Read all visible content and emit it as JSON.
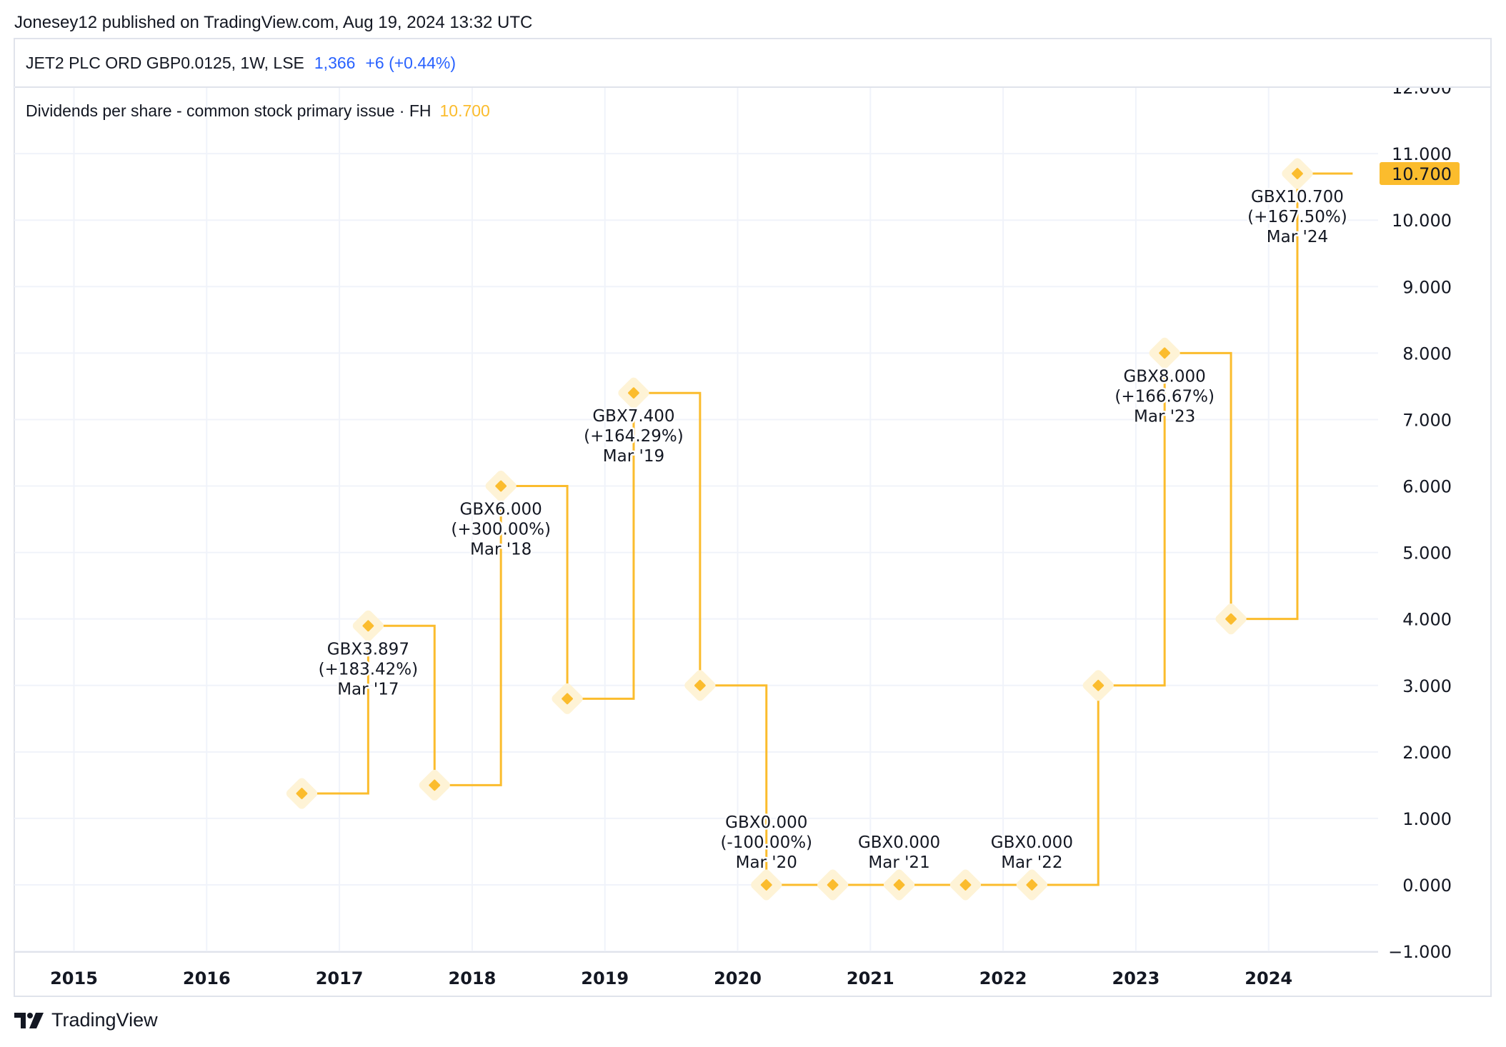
{
  "published": "Jonesey12 published on TradingView.com, Aug 19, 2024 13:32 UTC",
  "header": {
    "symbol": "JET2 PLC ORD GBP0.0125, 1W, LSE",
    "price": "1,366",
    "change": "+6 (+0.44%)"
  },
  "indicator": {
    "name": "Dividends per share - common stock primary issue · FH",
    "value": "10.700"
  },
  "footer": {
    "brand": "TradingView"
  },
  "colors": {
    "series": "#fbbc2d",
    "halo": "#fef3d6",
    "accent_blue": "#2962ff",
    "grid": "#f0f3fa"
  },
  "chart_data": {
    "type": "line",
    "step": true,
    "x": [
      "2016-09",
      "2017-03",
      "2017-09",
      "2018-03",
      "2018-09",
      "2019-03",
      "2019-09",
      "2020-03",
      "2020-09",
      "2021-03",
      "2021-09",
      "2022-03",
      "2022-09",
      "2023-03",
      "2023-09",
      "2024-03"
    ],
    "values": [
      1.375,
      3.897,
      1.5,
      6.0,
      2.8,
      7.4,
      3.0,
      0.0,
      0.0,
      0.0,
      0.0,
      0.0,
      3.0,
      8.0,
      4.0,
      10.7
    ],
    "line_end": "2024-08",
    "annotations": [
      {
        "x": "2017-03",
        "lines": [
          "GBX3.897",
          "(+183.42%)",
          "Mar '17"
        ]
      },
      {
        "x": "2018-03",
        "lines": [
          "GBX6.000",
          "(+300.00%)",
          "Mar '18"
        ]
      },
      {
        "x": "2019-03",
        "lines": [
          "GBX7.400",
          "(+164.29%)",
          "Mar '19"
        ]
      },
      {
        "x": "2020-03",
        "lines": [
          "GBX0.000",
          "(-100.00%)",
          "Mar '20"
        ]
      },
      {
        "x": "2021-03",
        "lines": [
          "GBX0.000",
          "Mar '21"
        ]
      },
      {
        "x": "2022-03",
        "lines": [
          "GBX0.000",
          "Mar '22"
        ]
      },
      {
        "x": "2023-03",
        "lines": [
          "GBX8.000",
          "(+166.67%)",
          "Mar '23"
        ]
      },
      {
        "x": "2024-03",
        "lines": [
          "GBX10.700",
          "(+167.50%)",
          "Mar '24"
        ]
      }
    ],
    "last_value_label": "10.700",
    "x_ticks": [
      "2015",
      "2016",
      "2017",
      "2018",
      "2019",
      "2020",
      "2021",
      "2022",
      "2023",
      "2024"
    ],
    "y_ticks": [
      "−1.000",
      "0.000",
      "1.000",
      "2.000",
      "3.000",
      "4.000",
      "5.000",
      "6.000",
      "7.000",
      "8.000",
      "9.000",
      "10.000",
      "11.000",
      "12.000"
    ],
    "ylim": [
      -1,
      12
    ],
    "grid": true,
    "y_axis_position": "right",
    "title": "",
    "xlabel": "",
    "ylabel": ""
  }
}
